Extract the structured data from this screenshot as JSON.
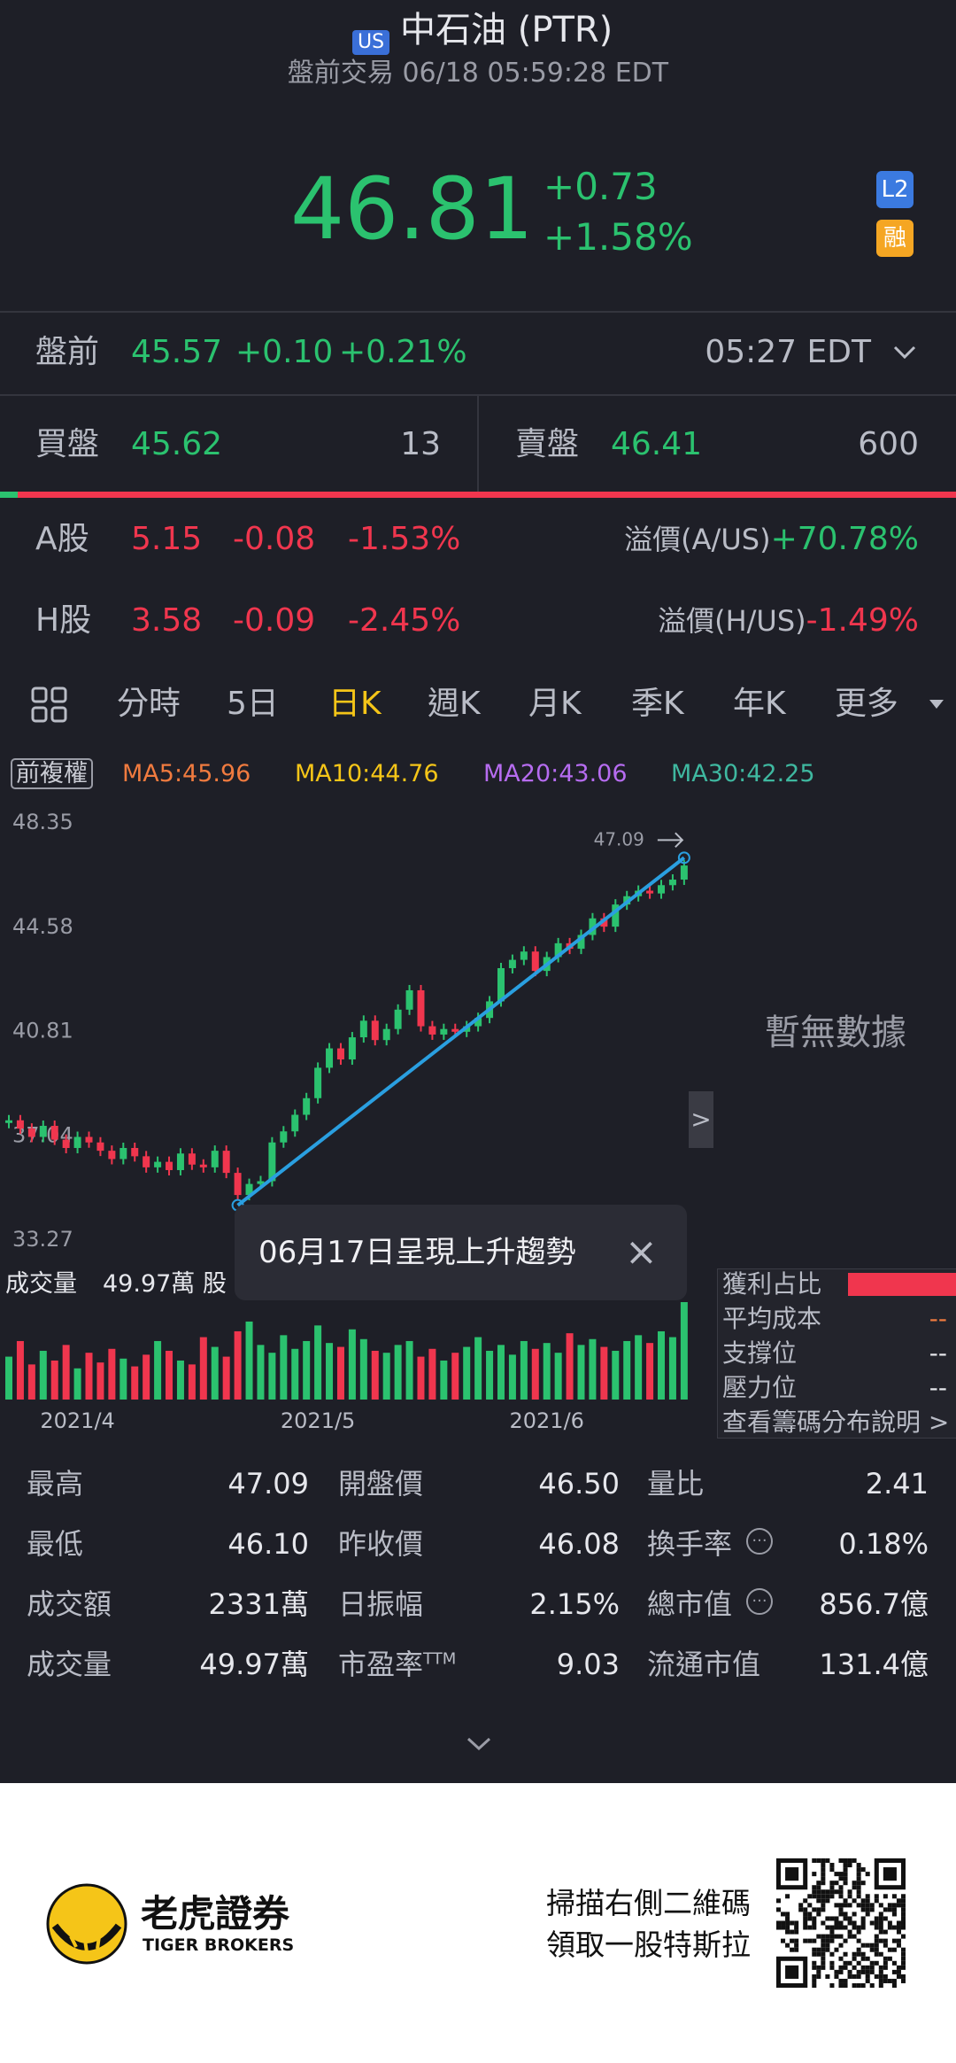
{
  "header": {
    "badge": "US",
    "title": "中石油 (PTR)",
    "subtitle": "盤前交易 06/18 05:59:28 EDT"
  },
  "quote": {
    "price": "46.81",
    "change": "+0.73",
    "change_pct": "+1.58%",
    "badges": [
      "L2",
      "融"
    ]
  },
  "premarket": {
    "label": "盤前",
    "price": "45.57",
    "change": "+0.10",
    "change_pct": "+0.21%",
    "time": "05:27 EDT"
  },
  "bid": {
    "label": "買盤",
    "price": "45.62",
    "size": "13"
  },
  "ask": {
    "label": "賣盤",
    "price": "46.41",
    "size": "600"
  },
  "a_share": {
    "label": "A股",
    "price": "5.15",
    "change": "-0.08",
    "change_pct": "-1.53%",
    "premium_label": "溢價(A/US)",
    "premium": "+70.78%"
  },
  "h_share": {
    "label": "H股",
    "price": "3.58",
    "change": "-0.09",
    "change_pct": "-2.45%",
    "premium_label": "溢價(H/US)",
    "premium": "-1.49%"
  },
  "tabs": [
    "分時",
    "5日",
    "日K",
    "週K",
    "月K",
    "季K",
    "年K",
    "更多"
  ],
  "ma_legend": {
    "adjust": "前複權",
    "items": [
      "MA5:45.96",
      "MA10:44.76",
      "MA20:43.06",
      "MA30:42.25"
    ]
  },
  "chart_data": {
    "type": "candlestick",
    "categories": [
      null,
      null,
      null,
      null,
      null,
      null,
      "2021/4",
      null,
      null,
      null,
      null,
      null,
      null,
      null,
      null,
      null,
      null,
      null,
      null,
      null,
      null,
      null,
      null,
      null,
      null,
      null,
      null,
      "2021/5",
      null,
      null,
      null,
      null,
      null,
      null,
      null,
      null,
      null,
      null,
      null,
      null,
      null,
      null,
      null,
      null,
      null,
      null,
      null,
      "2021/6",
      null,
      null,
      null,
      null,
      null,
      null,
      null,
      null,
      null,
      null,
      null,
      null
    ],
    "values": [
      37.6,
      37.3,
      37.0,
      37.4,
      36.9,
      36.6,
      37.0,
      36.8,
      36.5,
      36.2,
      36.6,
      36.3,
      35.9,
      36.1,
      35.8,
      36.4,
      36.0,
      35.9,
      36.5,
      35.7,
      34.9,
      35.3,
      35.4,
      36.8,
      37.2,
      37.8,
      38.4,
      39.5,
      40.2,
      39.8,
      40.6,
      41.2,
      40.5,
      40.9,
      41.6,
      42.3,
      41.0,
      40.7,
      40.9,
      40.8,
      41.0,
      41.3,
      41.9,
      43.1,
      43.4,
      43.7,
      43.0,
      43.5,
      44.0,
      43.8,
      44.3,
      44.9,
      44.6,
      45.4,
      45.7,
      45.9,
      45.8,
      46.1,
      46.3,
      46.81
    ],
    "volumes": [
      22,
      30,
      18,
      25,
      20,
      28,
      16,
      24,
      19,
      26,
      21,
      17,
      23,
      30,
      25,
      20,
      18,
      32,
      27,
      22,
      35,
      40,
      28,
      24,
      33,
      26,
      30,
      38,
      29,
      27,
      36,
      31,
      25,
      24,
      28,
      30,
      22,
      26,
      20,
      24,
      27,
      32,
      25,
      28,
      23,
      30,
      26,
      29,
      24,
      34,
      28,
      31,
      27,
      25,
      30,
      33,
      29,
      35,
      32,
      49.97
    ],
    "ylim": [
      33.27,
      48.35
    ],
    "yticks": [
      48.35,
      44.58,
      40.81,
      37.04,
      33.27
    ],
    "high": 47.09,
    "low": 34.53,
    "up_color": "#2bc26f",
    "down_color": "#f0364e",
    "trend_color": "#2a9fe0",
    "empty_label": "暫無數據",
    "toast": "06月17日呈現上升趨勢",
    "volume_label": "成交量",
    "volume_value": "49.97萬 股"
  },
  "chip_panel": {
    "items": [
      {
        "label": "獲利占比"
      },
      {
        "label": "平均成本",
        "value": "--"
      },
      {
        "label": "支撐位",
        "value": "--"
      },
      {
        "label": "壓力位",
        "value": "--"
      }
    ],
    "link": "查看籌碼分布說明"
  },
  "stats": [
    [
      {
        "label": "最高",
        "value": "47.09"
      },
      {
        "label": "開盤價",
        "value": "46.50"
      },
      {
        "label": "量比",
        "value": "2.41"
      }
    ],
    [
      {
        "label": "最低",
        "value": "46.10"
      },
      {
        "label": "昨收價",
        "value": "46.08"
      },
      {
        "label": "換手率",
        "value": "0.18%"
      }
    ],
    [
      {
        "label": "成交額",
        "value": "2331萬"
      },
      {
        "label": "日振幅",
        "value": "2.15%"
      },
      {
        "label": "總市值",
        "value": "856.7億"
      }
    ],
    [
      {
        "label": "成交量",
        "value": "49.97萬"
      },
      {
        "label": "市盈率",
        "sup": "TTM",
        "value": "9.03"
      },
      {
        "label": "流通市值",
        "value": "131.4億"
      }
    ]
  ],
  "footer": {
    "brand": "老虎證券",
    "brand_en": "TIGER BROKERS",
    "promo": [
      "掃描右側二維碼",
      "領取一股特斯拉"
    ]
  }
}
